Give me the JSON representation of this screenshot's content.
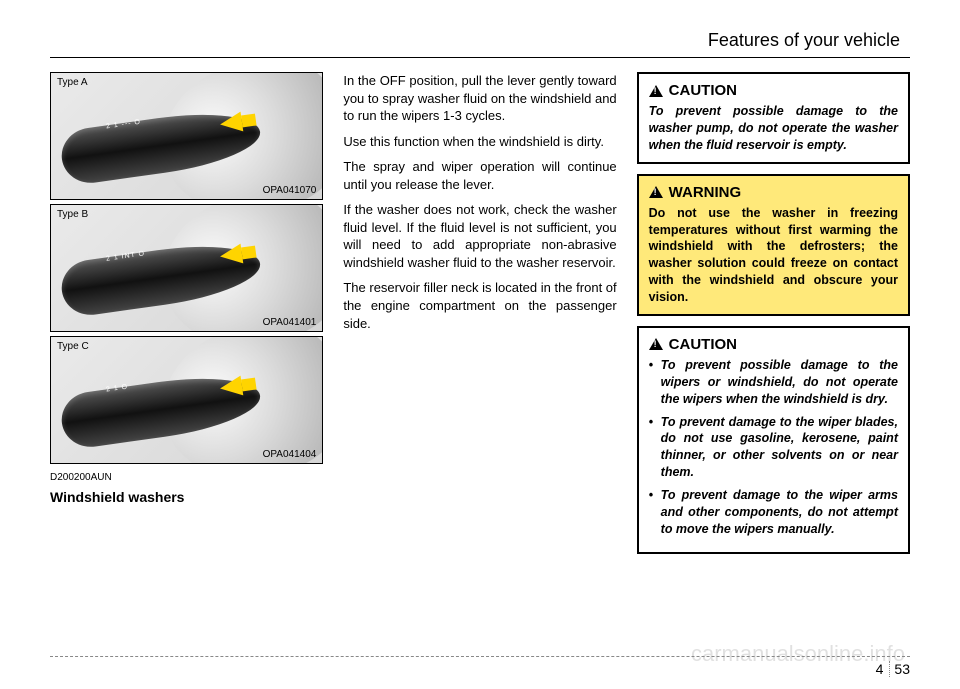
{
  "header": {
    "title": "Features of your vehicle"
  },
  "figures": {
    "a": {
      "type_label": "Type A",
      "code": "OPA041070",
      "markings": "2 1 --- O"
    },
    "b": {
      "type_label": "Type B",
      "code": "OPA041401",
      "markings": "2 1 INT O"
    },
    "c": {
      "type_label": "Type C",
      "code": "OPA041404",
      "markings": "2 1 O"
    }
  },
  "code_ref": "D200200AUN",
  "subheading": "Windshield washers",
  "body": {
    "p1": "In the OFF position, pull the lever gently toward you to spray washer fluid on the windshield and to run the wipers 1-3 cycles.",
    "p2": "Use this function when the windshield is dirty.",
    "p3": "The spray and wiper operation will continue until you release the lever.",
    "p4": "If the washer does not work, check the washer fluid level. If the fluid level is not sufficient, you will need to add appropriate non-abrasive windshield washer fluid to the washer reservoir.",
    "p5": "The reservoir filler neck is located in the front of the engine compartment on the passenger side."
  },
  "caution1": {
    "title": "CAUTION",
    "text": "To prevent possible damage to the washer pump, do not operate the washer when the fluid reservoir is empty."
  },
  "warning": {
    "title": "WARNING",
    "text": "Do not use the washer in freezing temperatures without first warming the windshield with the defrosters; the washer solution could freeze on contact with the windshield and obscure your vision."
  },
  "caution2": {
    "title": "CAUTION",
    "items": [
      "To prevent possible damage to the wipers or windshield, do not operate the wipers when the windshield is dry.",
      "To prevent damage to the wiper blades, do not use gasoline, kerosene, paint thinner, or other solvents on or near them.",
      "To prevent damage to the wiper arms and other components, do not attempt to move the wipers manually."
    ]
  },
  "footer": {
    "chapter": "4",
    "page": "53"
  },
  "watermark": "carmanualsonline.info",
  "colors": {
    "warning_bg": "#ffe97a",
    "arrow": "#ffd400"
  }
}
